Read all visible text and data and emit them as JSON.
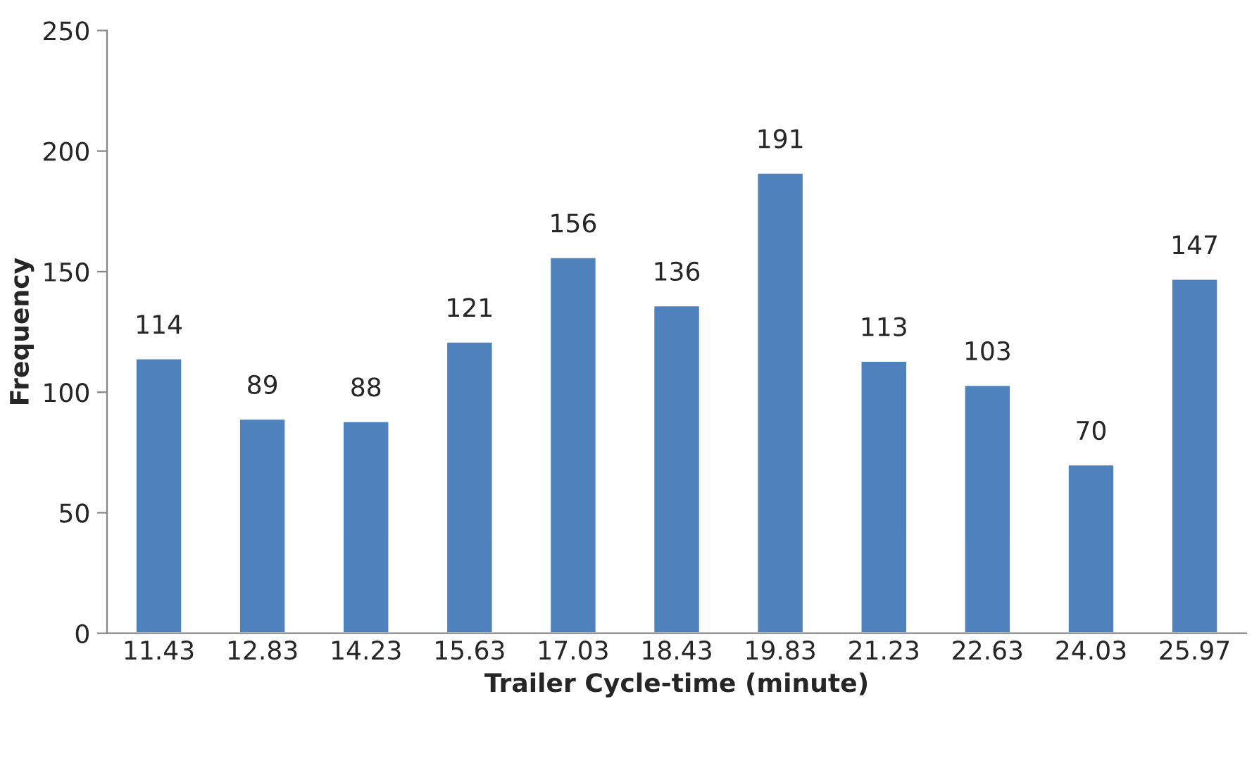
{
  "chart_data": {
    "type": "bar",
    "xlabel": "Trailer Cycle-time (minute)",
    "ylabel": "Frequency",
    "categories": [
      "11.43",
      "12.83",
      "14.23",
      "15.63",
      "17.03",
      "18.43",
      "19.83",
      "21.23",
      "22.63",
      "24.03",
      "25.97"
    ],
    "values": [
      114,
      89,
      88,
      121,
      156,
      136,
      191,
      113,
      103,
      70,
      147
    ],
    "color": "#4f81bd",
    "ylim": [
      0,
      250
    ],
    "yticks": [
      0,
      50,
      100,
      150,
      200,
      250
    ],
    "grid": false,
    "data_labels": true
  }
}
